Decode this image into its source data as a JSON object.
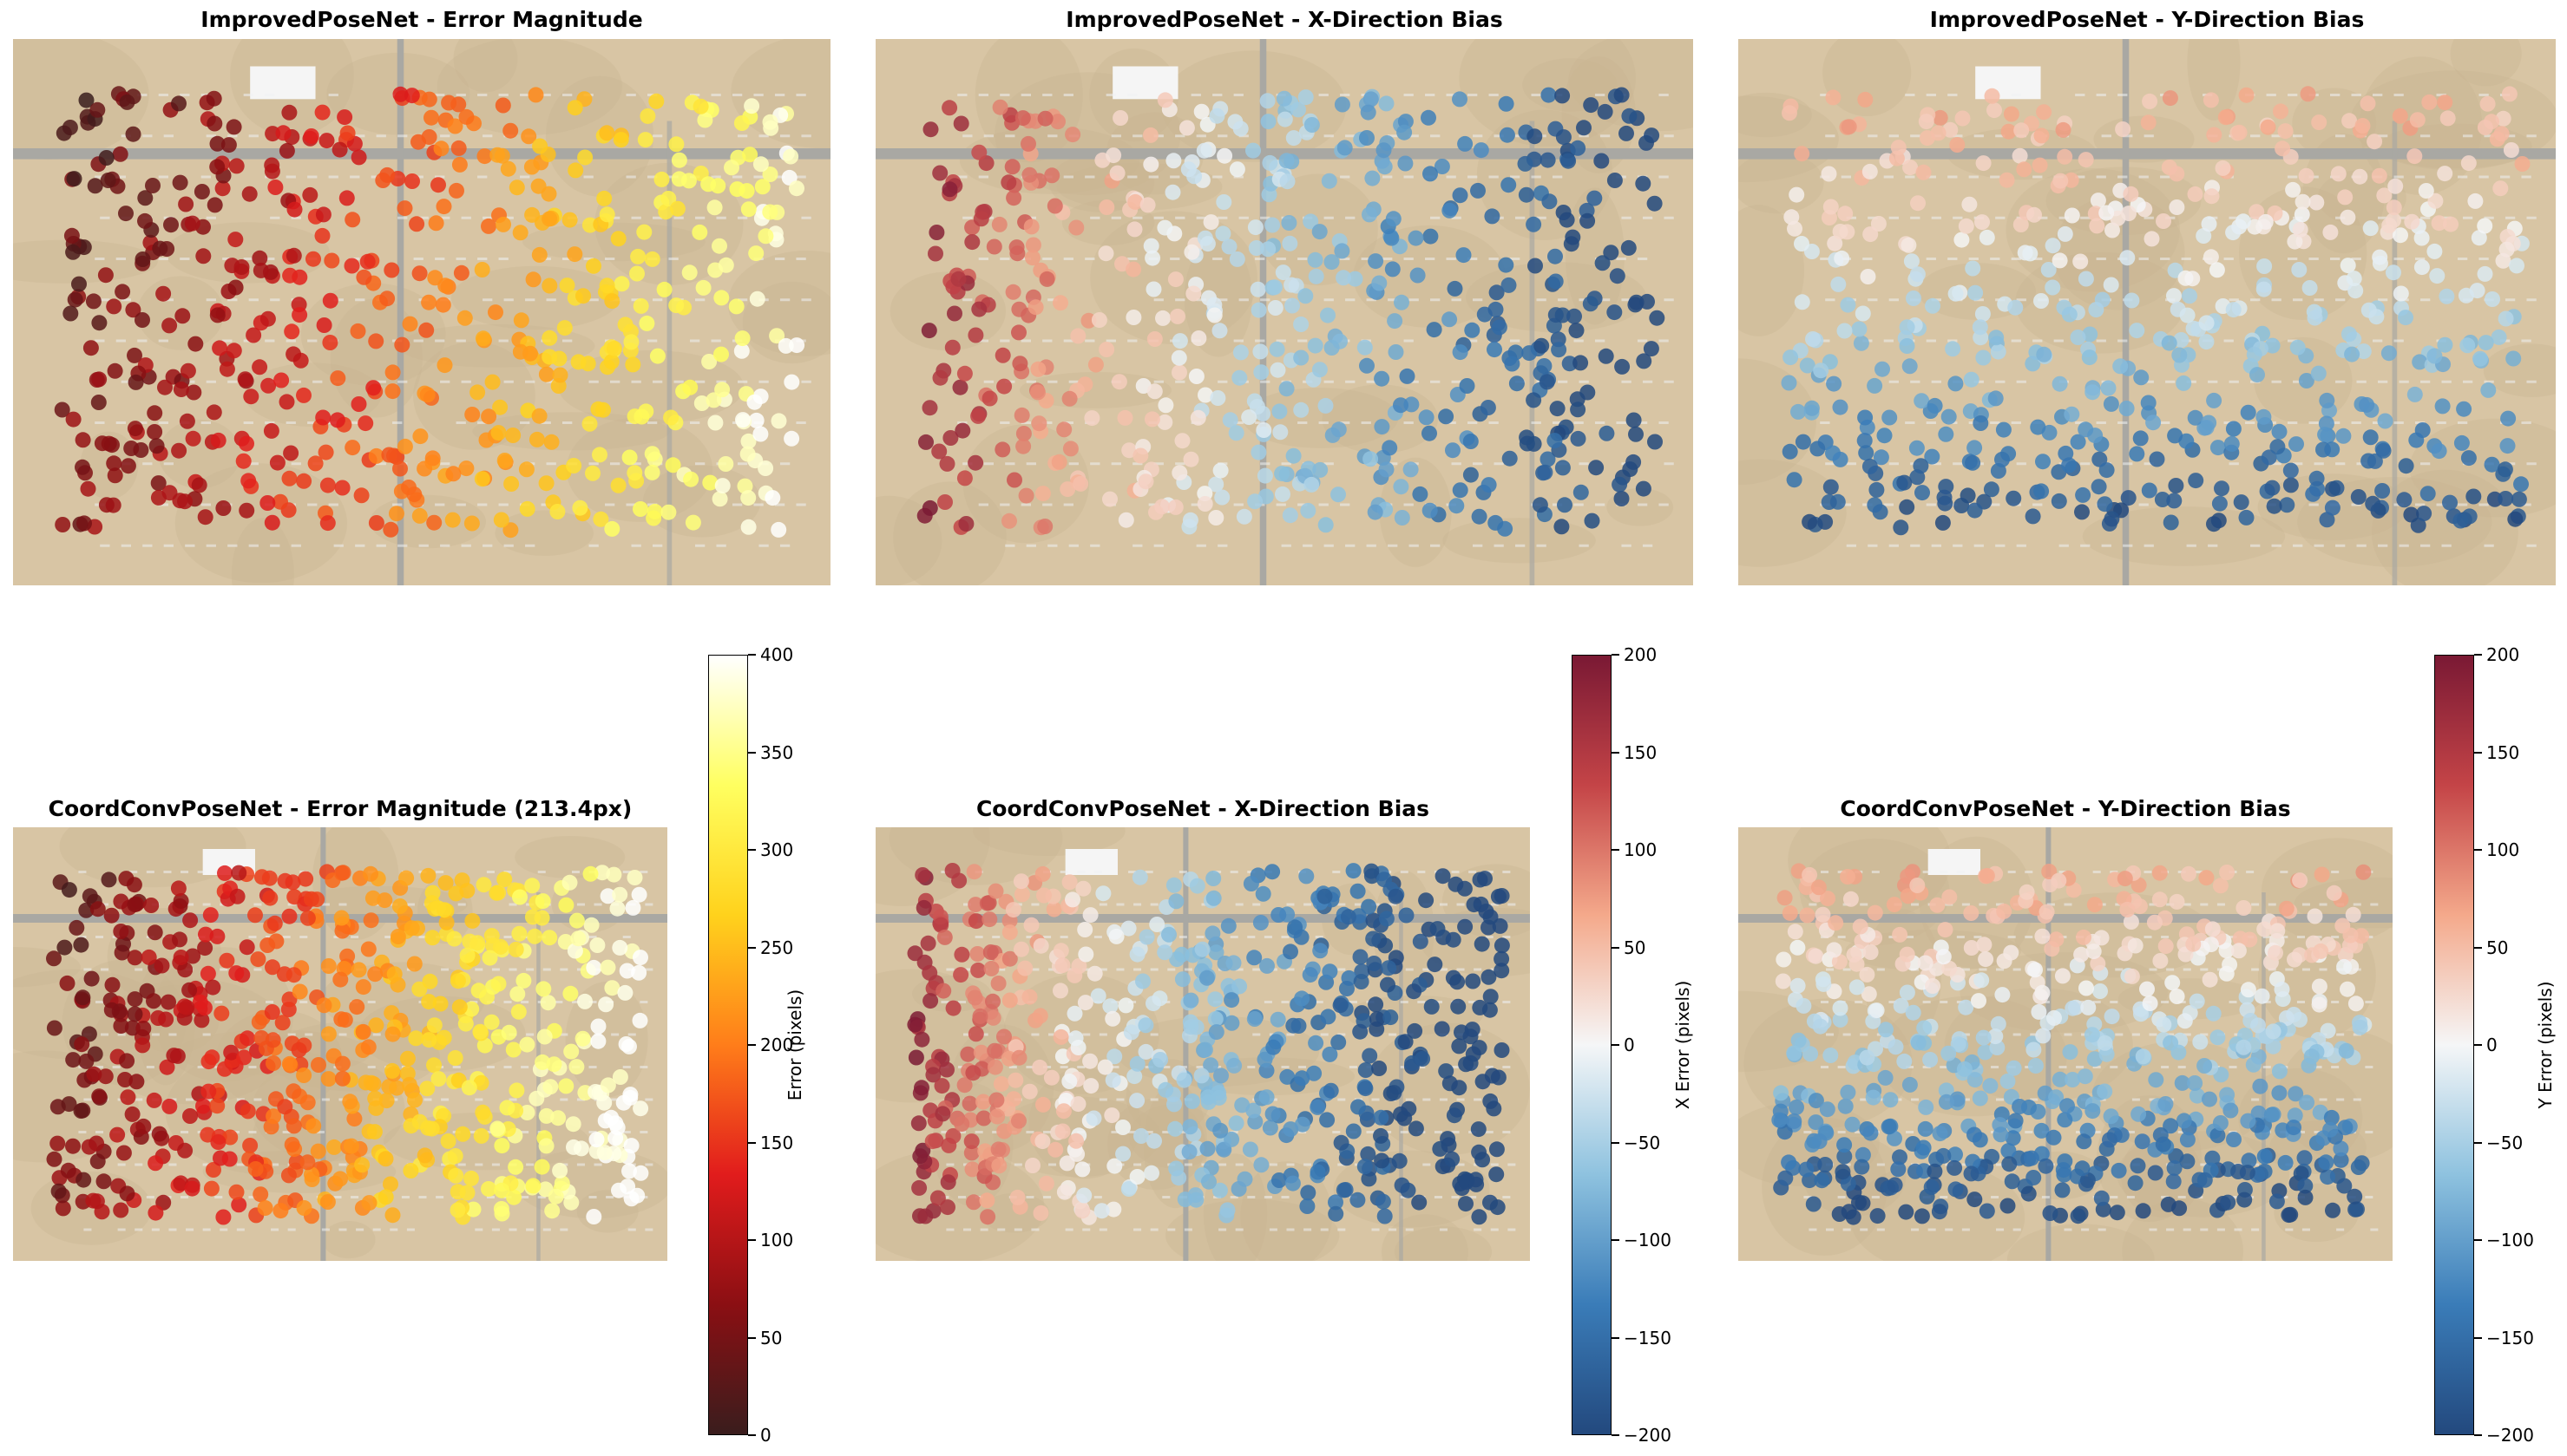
{
  "colors": {
    "ground": "#d8c5a4",
    "ground_dark": "#c9b493",
    "runway": "#a9a8a3",
    "aircraft": "#eef0f2",
    "building": "#f5f5f5",
    "hot_cmap": [
      "#3a1d1d",
      "#8b0f13",
      "#e11c1c",
      "#ff7d1a",
      "#ffd21c",
      "#ffff60",
      "#ffffff"
    ],
    "rdbu_cmap": [
      "#23497e",
      "#3a7cb8",
      "#8ec2df",
      "#f5f6f7",
      "#f4a98b",
      "#c44447",
      "#7a1934"
    ]
  },
  "colorbars": [
    {
      "id": "error",
      "label": "Error (pixels)",
      "min": 0,
      "max": 400,
      "ticks": [
        "0",
        "50",
        "100",
        "150",
        "200",
        "250",
        "300",
        "350",
        "400"
      ]
    },
    {
      "id": "x",
      "label": "X Error (pixels)",
      "min": -200,
      "max": 200,
      "ticks": [
        "−200",
        "−150",
        "−100",
        "−50",
        "0",
        "50",
        "100",
        "150",
        "200"
      ]
    },
    {
      "id": "y",
      "label": "Y Error (pixels)",
      "min": -200,
      "max": 200,
      "ticks": [
        "−200",
        "−150",
        "−100",
        "−50",
        "0",
        "50",
        "100",
        "150",
        "200"
      ]
    }
  ],
  "chart_data": [
    {
      "type": "scatter",
      "title": "ImprovedPoseNet - Error Magnitude",
      "metric": "error_magnitude",
      "units": "pixels",
      "colorbar": "error",
      "colormap": "hot",
      "range": [
        0,
        400
      ],
      "description": "error lowest (~20-100px, dark red) in upper-left, rising to red/orange in middle, yellow to near-white (~300-400px) at right edge"
    },
    {
      "type": "scatter",
      "title": "ImprovedPoseNet - X-Direction Bias",
      "metric": "x_error",
      "units": "pixels",
      "colorbar": "x",
      "colormap": "RdBu",
      "range": [
        -200,
        200
      ],
      "description": "strong positive x error (~+150 to +200) at left edge, near zero in centre-left, strongly negative (~-150 to -200) on right half"
    },
    {
      "type": "scatter",
      "title": "ImprovedPoseNet - Y-Direction Bias",
      "metric": "y_error",
      "units": "pixels",
      "colorbar": "y",
      "colormap": "RdBu",
      "range": [
        -200,
        200
      ],
      "description": "mildly positive y error (~+50) in top rows, near zero mid, strongly negative (~-150 to -200) in bottom rows"
    },
    {
      "type": "scatter",
      "title": "CoordConvPoseNet - Error Magnitude (213.4px)",
      "metric": "error_magnitude",
      "units": "pixels",
      "mean_error": 213.4,
      "colorbar": "error",
      "colormap": "hot",
      "range": [
        0,
        400
      ],
      "description": "low error (~20-100px) upper-left, red in middle, orange-yellow to white (~350-400px) at right edge"
    },
    {
      "type": "scatter",
      "title": "CoordConvPoseNet - X-Direction Bias",
      "metric": "x_error",
      "units": "pixels",
      "colorbar": "x",
      "colormap": "RdBu",
      "range": [
        -200,
        200
      ],
      "description": "positive x error (~+150 to +200) at left edge, near zero centre-left, strongly negative (~-200) on right"
    },
    {
      "type": "scatter",
      "title": "CoordConvPoseNet - Y-Direction Bias",
      "metric": "y_error",
      "units": "pixels",
      "colorbar": "y",
      "colormap": "RdBu",
      "range": [
        -200,
        200
      ],
      "description": "slightly positive y error (~+50) at top, near zero middle, strongly negative (~-150 to -200) at bottom"
    }
  ]
}
